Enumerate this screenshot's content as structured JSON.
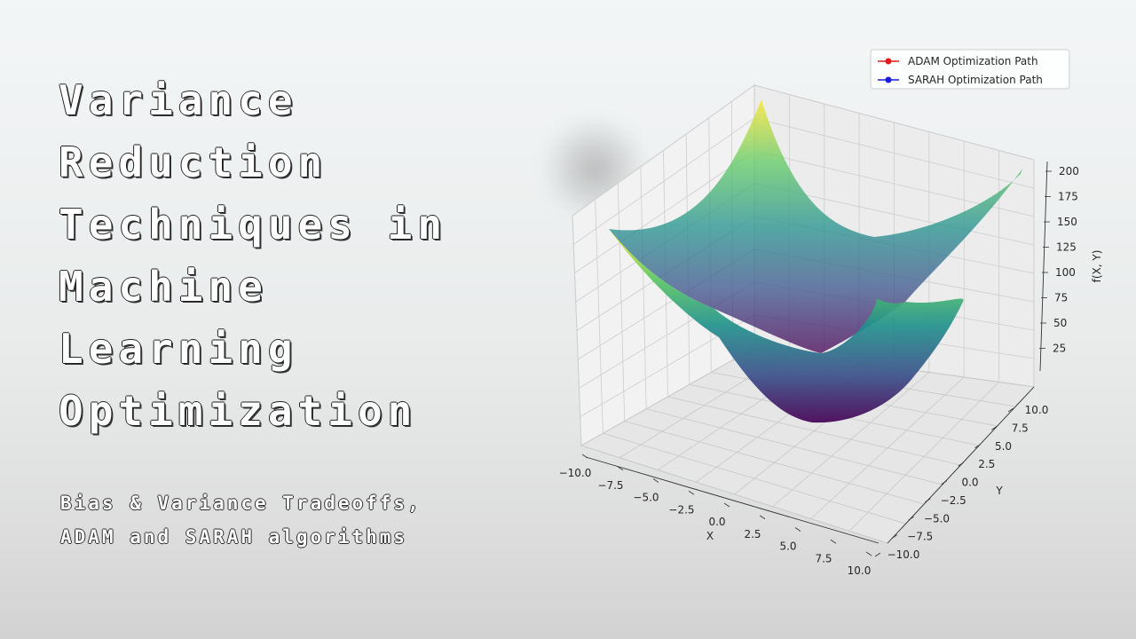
{
  "title_lines": [
    "Variance",
    "Reduction",
    "Techniques in",
    "Machine",
    "Learning",
    "Optimization"
  ],
  "subtitle_lines": [
    "Bias & Variance Tradeoffs,",
    "ADAM and SARAH algorithms"
  ],
  "chart_data": {
    "type": "surface3d",
    "function": "f(X, Y) = X^2 + Y^2",
    "xlabel": "X",
    "ylabel": "Y",
    "zlabel": "f(X, Y)",
    "x_ticks": [
      "−10.0",
      "−7.5",
      "−5.0",
      "−2.5",
      "0.0",
      "2.5",
      "5.0",
      "7.5",
      "10.0"
    ],
    "y_ticks": [
      "10.0",
      "7.5",
      "5.0",
      "2.5",
      "0.0",
      "−2.5",
      "−5.0",
      "−7.5",
      "−10.0"
    ],
    "z_ticks": [
      "200",
      "175",
      "150",
      "125",
      "100",
      "75",
      "50",
      "25"
    ],
    "xlim": [
      -10,
      10
    ],
    "ylim": [
      -10,
      10
    ],
    "zlim": [
      0,
      200
    ],
    "colormap": "viridis",
    "legend": [
      {
        "label": "ADAM Optimization Path",
        "color": "#e31a1c"
      },
      {
        "label": "SARAH Optimization Path",
        "color": "#1a1ae3"
      }
    ],
    "legend_position": "top-right",
    "grid": true
  }
}
